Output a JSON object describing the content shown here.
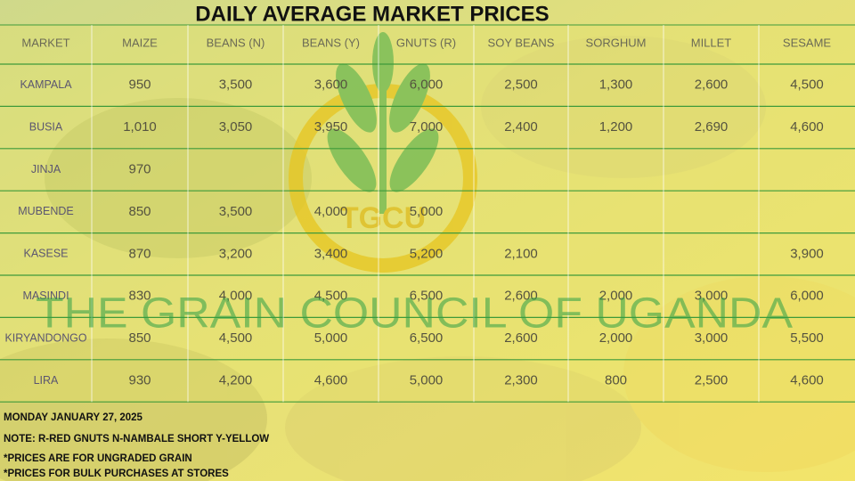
{
  "title": "DAILY AVERAGE MARKET PRICES",
  "watermark": "THE GRAIN COUNCIL OF UGANDA",
  "logo": "TGCU",
  "table": {
    "header": [
      "MARKET",
      "MAIZE",
      "BEANS (N)",
      "BEANS (Y)",
      "GNUTS (R)",
      "SOY BEANS",
      "SORGHUM",
      "MILLET",
      "SESAME"
    ],
    "rows": [
      [
        "KAMPALA",
        "950",
        "3,500",
        "3,600",
        "6,000",
        "2,500",
        "1,300",
        "2,600",
        "4,500"
      ],
      [
        "BUSIA",
        "1,010",
        "3,050",
        "3,950",
        "7,000",
        "2,400",
        "1,200",
        "2,690",
        "4,600"
      ],
      [
        "JINJA",
        "970",
        null,
        null,
        null,
        null,
        null,
        null,
        null
      ],
      [
        "MUBENDE",
        "850",
        "3,500",
        "4,000",
        "5,000",
        null,
        null,
        null,
        null
      ],
      [
        "KASESE",
        "870",
        "3,200",
        "3,400",
        "5,200",
        "2,100",
        null,
        null,
        "3,900"
      ],
      [
        "MASINDI",
        "830",
        "4,000",
        "4,500",
        "6,500",
        "2,600",
        "2,000",
        "3,000",
        "6,000"
      ],
      [
        "KIRYANDONGO",
        "850",
        "4,500",
        "5,000",
        "6,500",
        "2,600",
        "2,000",
        "3,000",
        "5,500"
      ],
      [
        "LIRA",
        "930",
        "4,200",
        "4,600",
        "5,000",
        "2,300",
        "800",
        "2,500",
        "4,600"
      ]
    ]
  },
  "notes": [
    "MONDAY JANUARY 27, 2025",
    "NOTE: R-RED GNUTS  N-NAMBALE SHORT  Y-YELLOW",
    "*PRICES ARE FOR UNGRADED GRAIN",
    "*PRICES FOR BULK PURCHASES AT STORES"
  ]
}
